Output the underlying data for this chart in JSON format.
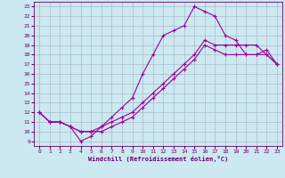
{
  "xlabel": "Windchill (Refroidissement éolien,°C)",
  "bg_color": "#cce8f0",
  "grid_color": "#aabbcc",
  "line_color": "#990099",
  "xlim": [
    -0.5,
    23.5
  ],
  "ylim": [
    8.5,
    23.5
  ],
  "xticks": [
    0,
    1,
    2,
    3,
    4,
    5,
    6,
    7,
    8,
    9,
    10,
    11,
    12,
    13,
    14,
    15,
    16,
    17,
    18,
    19,
    20,
    21,
    22,
    23
  ],
  "yticks": [
    9,
    10,
    11,
    12,
    13,
    14,
    15,
    16,
    17,
    18,
    19,
    20,
    21,
    22,
    23
  ],
  "line1_x": [
    0,
    1,
    2,
    3,
    4,
    5,
    6,
    7,
    8,
    9,
    10,
    11,
    12,
    13,
    14,
    15,
    16,
    17,
    18,
    19,
    20,
    21,
    22,
    23
  ],
  "line1_y": [
    12,
    11,
    11,
    10.5,
    9,
    9.5,
    10.5,
    11.5,
    12.5,
    13.5,
    16,
    18,
    20,
    20.5,
    21,
    23,
    22.5,
    22,
    20,
    19.5,
    18,
    18,
    18.5,
    17
  ],
  "line2_x": [
    0,
    1,
    2,
    3,
    4,
    5,
    6,
    7,
    8,
    9,
    10,
    11,
    12,
    13,
    14,
    15,
    16,
    17,
    18,
    19,
    20,
    21,
    22,
    23
  ],
  "line2_y": [
    12,
    11,
    11,
    10.5,
    10,
    10,
    10.5,
    11,
    11.5,
    12,
    13,
    14,
    15,
    16,
    17,
    18,
    19.5,
    19,
    19,
    19,
    19,
    19,
    18,
    17
  ],
  "line3_x": [
    0,
    1,
    2,
    3,
    4,
    5,
    6,
    7,
    8,
    9,
    10,
    11,
    12,
    13,
    14,
    15,
    16,
    17,
    18,
    19,
    20,
    21,
    22,
    23
  ],
  "line3_y": [
    12,
    11,
    11,
    10.5,
    10,
    10,
    10,
    10.5,
    11,
    11.5,
    12.5,
    13.5,
    14.5,
    15.5,
    16.5,
    17.5,
    19,
    18.5,
    18,
    18,
    18,
    18,
    18,
    17
  ]
}
